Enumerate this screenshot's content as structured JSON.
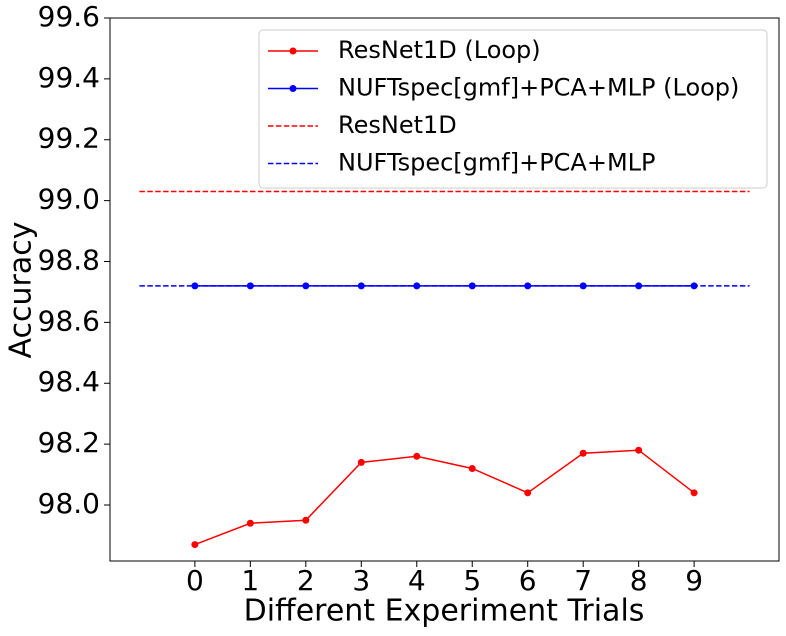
{
  "chart_data": {
    "type": "line",
    "xlabel": "Different Experiment Trials",
    "ylabel": "Accuracy",
    "x": [
      0,
      1,
      2,
      3,
      4,
      5,
      6,
      7,
      8,
      9
    ],
    "xlim": [
      -1.53,
      10.53
    ],
    "xticks": [
      0,
      1,
      2,
      3,
      4,
      5,
      6,
      7,
      8,
      9
    ],
    "ylim": [
      97.816,
      99.6
    ],
    "yticks": [
      {
        "value": 98,
        "label": "98.0"
      },
      98.2,
      98.4,
      98.6,
      98.8,
      {
        "value": 99,
        "label": "99.0"
      },
      99.2,
      99.4,
      99.6
    ],
    "legend": "upper right",
    "grid": false,
    "series": [
      {
        "name": "ResNet1D (Loop)",
        "color": "#ff0000",
        "linestyle": "solid",
        "marker": true,
        "values": [
          97.87,
          97.94,
          97.95,
          98.14,
          98.16,
          98.12,
          98.04,
          98.17,
          98.18,
          98.04
        ]
      },
      {
        "name": "NUFTspec[gmf]+PCA+MLP (Loop)",
        "color": "#0000ff",
        "linestyle": "solid",
        "marker": true,
        "values": [
          98.72,
          98.72,
          98.72,
          98.72,
          98.72,
          98.72,
          98.72,
          98.72,
          98.72,
          98.72
        ]
      },
      {
        "name": "ResNet1D",
        "color": "#ff0000",
        "linestyle": "dashed",
        "marker": false,
        "x": [
          -1,
          10
        ],
        "values": [
          99.03,
          99.03
        ]
      },
      {
        "name": "NUFTspec[gmf]+PCA+MLP",
        "color": "#0000ff",
        "linestyle": "dashed",
        "marker": false,
        "x": [
          -1,
          10
        ],
        "values": [
          98.72,
          98.72
        ]
      }
    ]
  }
}
